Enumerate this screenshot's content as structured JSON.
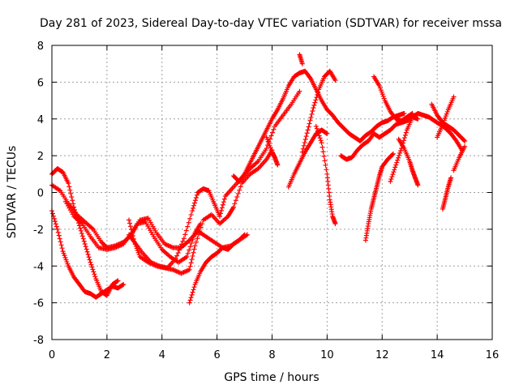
{
  "chart_data": {
    "type": "scatter",
    "title": "Day 281 of 2023, Sidereal Day-to-day VTEC variation (SDTVAR) for receiver mssa",
    "xlabel": "GPS time / hours",
    "ylabel": "SDTVAR / TECUs",
    "xlim": [
      0,
      16
    ],
    "ylim": [
      -8,
      8
    ],
    "xticks": [
      0,
      2,
      4,
      6,
      8,
      10,
      12,
      14,
      16
    ],
    "yticks": [
      -8,
      -6,
      -4,
      -2,
      0,
      2,
      4,
      6,
      8
    ],
    "xtick_labels": [
      "0",
      "2",
      "4",
      "6",
      "8",
      "10",
      "12",
      "14",
      "16"
    ],
    "ytick_labels": [
      "-8",
      "-6",
      "-4",
      "-2",
      "0",
      "2",
      "4",
      "6",
      "8"
    ],
    "grid": true,
    "marker": "+",
    "color": "#ff0000",
    "series": [
      {
        "x": [
          0.0,
          0.2,
          0.4,
          0.6,
          0.8,
          1.0,
          1.2,
          1.4,
          1.6,
          1.8,
          2.0,
          2.2,
          2.4,
          2.6
        ],
        "y": [
          -1.0,
          -2.0,
          -3.2,
          -4.0,
          -4.6,
          -5.0,
          -5.4,
          -5.5,
          -5.7,
          -5.5,
          -5.3,
          -5.1,
          -5.2,
          -5.0
        ]
      },
      {
        "x": [
          0.0,
          0.2,
          0.4,
          0.6,
          0.8,
          1.0,
          1.2,
          1.4,
          1.6,
          1.8,
          2.0,
          2.2,
          2.4
        ],
        "y": [
          1.0,
          1.3,
          1.1,
          0.5,
          -0.8,
          -1.8,
          -2.8,
          -3.8,
          -4.7,
          -5.4,
          -5.6,
          -5.0,
          -4.8
        ]
      },
      {
        "x": [
          0.0,
          0.3,
          0.6,
          0.9,
          1.2,
          1.5,
          1.8,
          2.0,
          2.3,
          2.6,
          2.9,
          3.1,
          3.4,
          3.7,
          4.0,
          4.3,
          4.6,
          4.9,
          5.2,
          5.4
        ],
        "y": [
          0.4,
          0.1,
          -0.6,
          -1.2,
          -1.6,
          -2.0,
          -2.7,
          -3.0,
          -2.9,
          -2.7,
          -2.3,
          -1.7,
          -1.6,
          -2.4,
          -3.1,
          -3.5,
          -3.8,
          -3.5,
          -2.2,
          -1.7
        ]
      },
      {
        "x": [
          0.5,
          0.8,
          1.1,
          1.4,
          1.7,
          2.0,
          2.3,
          2.6,
          2.9,
          3.2,
          3.5,
          3.8,
          4.1,
          4.4,
          4.7,
          5.0,
          5.3,
          5.6,
          5.9,
          6.2,
          6.5,
          6.8,
          7.1
        ],
        "y": [
          -0.5,
          -1.3,
          -1.7,
          -2.4,
          -3.0,
          -3.1,
          -3.0,
          -2.8,
          -2.2,
          -1.5,
          -1.4,
          -2.2,
          -2.8,
          -3.0,
          -3.0,
          -2.6,
          -2.1,
          -2.4,
          -2.7,
          -3.0,
          -2.9,
          -2.6,
          -2.3
        ]
      },
      {
        "x": [
          2.8,
          3.0,
          3.2,
          3.5,
          3.8,
          4.1,
          4.4,
          4.7,
          5.0,
          5.2,
          5.5,
          5.8,
          6.1,
          6.4,
          6.6,
          6.9,
          7.2,
          7.5,
          7.8,
          8.0
        ],
        "y": [
          -1.5,
          -2.7,
          -3.5,
          -3.8,
          -4.0,
          -4.1,
          -4.2,
          -4.4,
          -4.2,
          -2.9,
          -1.5,
          -1.2,
          -1.7,
          -1.3,
          -0.8,
          0.5,
          1.0,
          1.3,
          1.8,
          2.3
        ]
      },
      {
        "x": [
          2.8,
          3.0,
          3.3,
          3.6,
          3.9,
          4.2,
          4.5,
          4.8,
          5.1,
          5.3,
          5.5,
          5.7,
          5.9,
          6.1,
          6.3,
          6.6,
          6.9,
          7.2,
          7.5,
          7.8,
          8.1,
          8.4,
          8.7,
          9.0
        ],
        "y": [
          -2.3,
          -2.7,
          -3.3,
          -3.8,
          -4.0,
          -4.1,
          -3.6,
          -2.5,
          -1.0,
          0.0,
          0.2,
          0.1,
          -0.6,
          -1.3,
          -0.2,
          0.3,
          0.8,
          1.3,
          1.7,
          2.4,
          3.6,
          4.2,
          4.8,
          5.5
        ]
      },
      {
        "x": [
          5.0,
          5.2,
          5.4,
          5.6,
          5.8,
          6.0,
          6.2,
          6.4,
          6.6,
          6.8,
          7.0
        ],
        "y": [
          -6.0,
          -5.0,
          -4.3,
          -3.8,
          -3.5,
          -3.3,
          -3.0,
          -3.1,
          -2.8,
          -2.6,
          -2.3
        ]
      },
      {
        "x": [
          6.6,
          6.8,
          7.0,
          7.2,
          7.4,
          7.6,
          7.8,
          8.0,
          8.2,
          8.4,
          8.6,
          8.8,
          9.0,
          9.2,
          9.4,
          9.6,
          9.8,
          10.0,
          10.2,
          10.4,
          10.6,
          10.8,
          11.0,
          11.2,
          11.4,
          11.6,
          11.8,
          12.0,
          12.2,
          12.4,
          12.6,
          12.8
        ],
        "y": [
          0.9,
          0.6,
          1.0,
          1.6,
          2.2,
          2.8,
          3.4,
          4.0,
          4.5,
          5.1,
          5.8,
          6.3,
          6.5,
          6.6,
          6.2,
          5.6,
          5.0,
          4.5,
          4.2,
          3.8,
          3.5,
          3.2,
          3.0,
          2.8,
          3.1,
          3.3,
          3.6,
          3.8,
          3.9,
          4.1,
          4.2,
          4.3
        ]
      },
      {
        "x": [
          7.8,
          8.0,
          8.1,
          8.2
        ],
        "y": [
          3.0,
          2.2,
          1.9,
          1.5
        ]
      },
      {
        "x": [
          9.0,
          9.1
        ],
        "y": [
          7.5,
          7.0
        ]
      },
      {
        "x": [
          8.6,
          8.8,
          9.0,
          9.2,
          9.4,
          9.6,
          9.8,
          10.0
        ],
        "y": [
          0.3,
          1.0,
          1.6,
          2.2,
          2.7,
          3.2,
          3.4,
          3.2
        ]
      },
      {
        "x": [
          9.1,
          9.3,
          9.5,
          9.7,
          9.9,
          10.1,
          10.3
        ],
        "y": [
          2.2,
          3.4,
          4.6,
          5.6,
          6.3,
          6.6,
          6.1
        ]
      },
      {
        "x": [
          9.6,
          9.8,
          10.0,
          10.1,
          10.2,
          10.3
        ],
        "y": [
          3.6,
          2.7,
          1.0,
          -0.4,
          -1.3,
          -1.7
        ]
      },
      {
        "x": [
          10.5,
          10.7,
          10.9,
          11.1,
          11.3,
          11.5,
          11.7,
          11.9,
          12.1,
          12.3,
          12.5,
          12.7,
          12.9,
          13.1,
          13.3
        ],
        "y": [
          2.0,
          1.8,
          1.9,
          2.3,
          2.6,
          2.8,
          3.2,
          3.0,
          3.2,
          3.4,
          3.7,
          3.8,
          3.9,
          4.1,
          4.0
        ]
      },
      {
        "x": [
          11.4,
          11.5,
          11.6,
          11.7,
          11.8,
          11.9,
          12.0,
          12.2,
          12.4
        ],
        "y": [
          -2.6,
          -1.7,
          -0.9,
          -0.3,
          0.3,
          0.9,
          1.4,
          1.8,
          2.1
        ]
      },
      {
        "x": [
          11.7,
          11.9,
          12.1,
          12.3,
          12.5,
          12.7,
          12.9,
          13.1
        ],
        "y": [
          6.3,
          5.8,
          5.0,
          4.4,
          4.0,
          3.9,
          4.1,
          4.3
        ]
      },
      {
        "x": [
          12.3,
          12.5,
          12.7,
          12.9,
          13.1,
          13.3,
          13.5,
          13.7,
          13.9,
          14.1,
          14.3,
          14.5,
          14.7,
          14.9
        ],
        "y": [
          0.6,
          1.5,
          2.4,
          3.4,
          4.1,
          4.3,
          4.2,
          4.1,
          3.9,
          3.7,
          3.5,
          3.2,
          2.8,
          2.3
        ]
      },
      {
        "x": [
          12.6,
          12.8,
          13.0,
          13.1,
          13.2,
          13.3
        ],
        "y": [
          2.9,
          2.4,
          1.7,
          1.2,
          0.8,
          0.4
        ]
      },
      {
        "x": [
          13.8,
          14.0,
          14.2,
          14.4,
          14.6,
          14.8,
          15.0
        ],
        "y": [
          4.8,
          4.2,
          3.8,
          3.6,
          3.4,
          3.1,
          2.8
        ]
      },
      {
        "x": [
          14.0,
          14.2,
          14.4,
          14.6
        ],
        "y": [
          3.0,
          3.7,
          4.5,
          5.2
        ]
      },
      {
        "x": [
          14.2,
          14.3,
          14.4,
          14.5
        ],
        "y": [
          -0.9,
          -0.3,
          0.3,
          0.8
        ]
      },
      {
        "x": [
          14.6,
          14.8,
          15.0
        ],
        "y": [
          1.2,
          1.9,
          2.5
        ]
      }
    ]
  }
}
